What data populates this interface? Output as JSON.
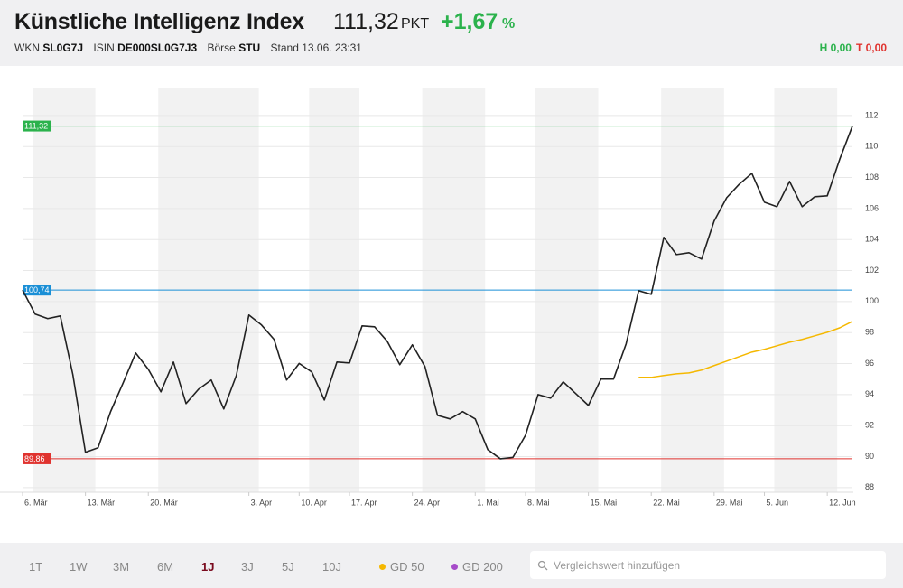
{
  "header": {
    "title": "Künstliche Intelligenz Index",
    "price": "111,32",
    "unit": "PKT",
    "change": "+1,67",
    "change_unit": "%",
    "wkn_label": "WKN",
    "wkn": "SL0G7J",
    "isin_label": "ISIN",
    "isin": "DE000SL0G7J3",
    "boerse_label": "Börse",
    "boerse": "STU",
    "stand": "Stand 13.06. 23:31",
    "high": "H 0,00",
    "low": "T 0,00"
  },
  "toolbar": {
    "ranges": [
      "1T",
      "1W",
      "3M",
      "6M",
      "1J",
      "3J",
      "5J",
      "10J"
    ],
    "gd200": "GD 200",
    "search_placeholder": "Vergleichswert hinzufügen"
  },
  "chart_data": {
    "type": "line",
    "categories": [
      "6. Mär",
      null,
      null,
      null,
      null,
      "13. Mär",
      null,
      null,
      null,
      null,
      "20. Mär",
      null,
      null,
      null,
      null,
      null,
      null,
      null,
      "3. Apr",
      null,
      null,
      null,
      "10. Apr",
      null,
      null,
      null,
      "17. Apr",
      null,
      null,
      null,
      null,
      "24. Apr",
      null,
      null,
      null,
      null,
      "1. Mai",
      null,
      null,
      null,
      "8. Mai",
      null,
      null,
      null,
      null,
      "15. Mai",
      null,
      null,
      null,
      null,
      "22. Mai",
      null,
      null,
      null,
      null,
      "29. Mai",
      null,
      null,
      null,
      "5. Jun",
      null,
      null,
      null,
      null,
      "12. Jun",
      null,
      null
    ],
    "series": [
      {
        "color": "#222222",
        "values": [
          100.74,
          99.19,
          98.9,
          99.07,
          95.28,
          90.28,
          90.57,
          92.9,
          94.76,
          96.68,
          95.63,
          94.18,
          96.1,
          93.42,
          94.35,
          94.94,
          93.07,
          95.23,
          99.13,
          98.49,
          97.56,
          94.94,
          96.01,
          95.46,
          93.65,
          96.1,
          96.04,
          98.43,
          98.37,
          97.44,
          95.93,
          97.21,
          95.81,
          92.66,
          92.43,
          92.9,
          92.43,
          90.45,
          89.86,
          89.95,
          91.38,
          94.0,
          93.77,
          94.82,
          94.06,
          93.3,
          95.0,
          95.0,
          97.27,
          100.7,
          100.47,
          104.14,
          103.03,
          103.15,
          102.74,
          105.19,
          106.7,
          107.57,
          108.27,
          106.41,
          106.12,
          107.75,
          106.12,
          106.76,
          106.82,
          109.2,
          111.32
        ]
      },
      {
        "name": "GD 50",
        "color": "#f5b800",
        "values": [
          null,
          null,
          null,
          null,
          null,
          null,
          null,
          null,
          null,
          null,
          null,
          null,
          null,
          null,
          null,
          null,
          null,
          null,
          null,
          null,
          null,
          null,
          null,
          null,
          null,
          null,
          null,
          null,
          null,
          null,
          null,
          null,
          null,
          null,
          null,
          null,
          null,
          null,
          null,
          null,
          null,
          null,
          null,
          null,
          null,
          null,
          null,
          null,
          null,
          95.11,
          95.11,
          95.23,
          95.34,
          95.4,
          95.58,
          95.87,
          96.16,
          96.45,
          96.74,
          96.92,
          97.15,
          97.38,
          97.56,
          97.79,
          98.02,
          98.31,
          98.72
        ]
      }
    ],
    "hlines": [
      {
        "value": 111.32,
        "label": "111,32",
        "color": "#2bb24c"
      },
      {
        "value": 100.74,
        "label": "100,74",
        "color": "#1a8fd6"
      },
      {
        "value": 89.86,
        "label": "89,86",
        "color": "#e0332f"
      }
    ],
    "ylim": [
      87.7,
      113.8
    ],
    "yticks": [
      88,
      90,
      92,
      94,
      96,
      98,
      100,
      102,
      104,
      106,
      108,
      110,
      112
    ],
    "grid": true
  }
}
